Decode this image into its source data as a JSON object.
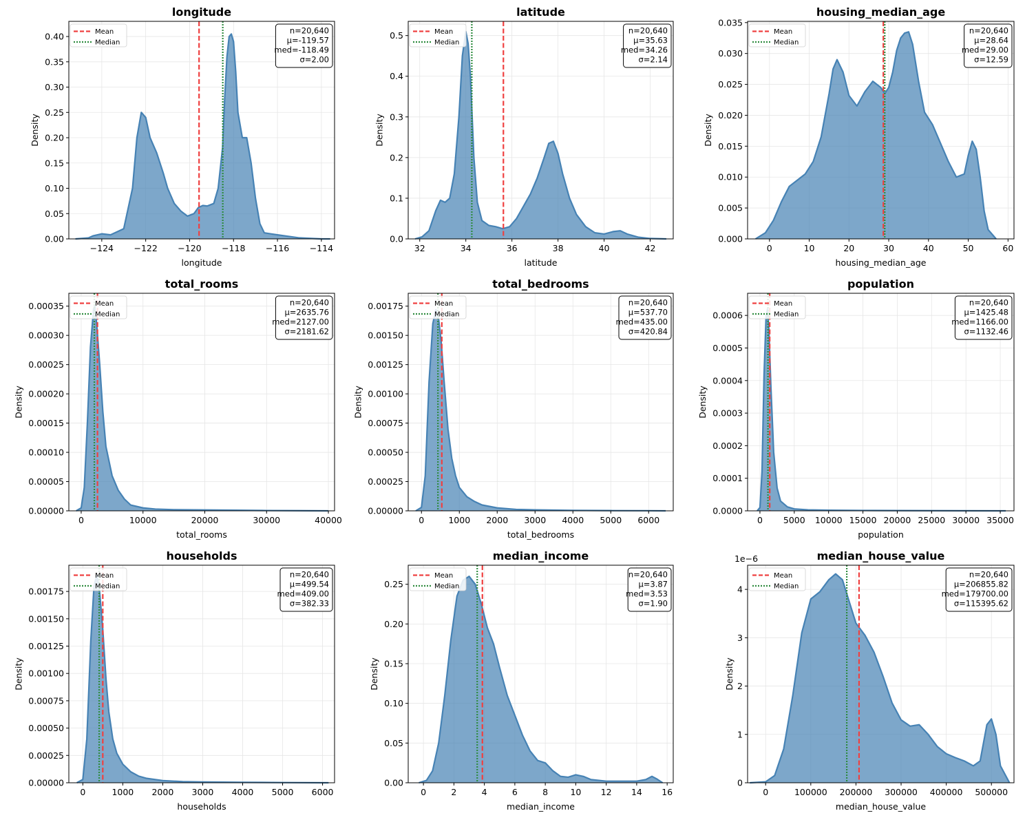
{
  "figure": {
    "legend_mean": "Mean",
    "legend_median": "Median",
    "ylabel": "Density"
  },
  "colors": {
    "fill": "#4682b4",
    "mean": "#ef4040",
    "median": "#2e8b3e",
    "grid": "#e6e6e6"
  },
  "chart_data": [
    {
      "type": "area",
      "title": "longitude",
      "xlabel": "longitude",
      "ylabel": "Density",
      "xlim": [
        -125.5,
        -113.4
      ],
      "ylim": [
        0,
        0.43
      ],
      "xticks": [
        -124,
        -122,
        -120,
        -118,
        -116,
        -114
      ],
      "xtick_labels": [
        "−124",
        "−122",
        "−120",
        "−118",
        "−116",
        "−114"
      ],
      "yticks": [
        0,
        0.05,
        0.1,
        0.15,
        0.2,
        0.25,
        0.3,
        0.35,
        0.4
      ],
      "ytick_labels": [
        "0.00",
        "0.05",
        "0.10",
        "0.15",
        "0.20",
        "0.25",
        "0.30",
        "0.35",
        "0.40"
      ],
      "offset_label": "",
      "mean": -119.57,
      "median": -118.49,
      "grid": true,
      "legend": "top-left",
      "stats": [
        "n=20,640",
        "μ=-119.57",
        "med=-118.49",
        "σ=2.00"
      ],
      "x": [
        -125.2,
        -124.6,
        -124.4,
        -124.0,
        -123.6,
        -123.0,
        -122.6,
        -122.4,
        -122.2,
        -122.0,
        -121.8,
        -121.5,
        -121.2,
        -121.0,
        -120.7,
        -120.4,
        -120.1,
        -119.8,
        -119.6,
        -119.4,
        -119.2,
        -118.9,
        -118.7,
        -118.5,
        -118.4,
        -118.3,
        -118.2,
        -118.1,
        -118.0,
        -117.9,
        -117.8,
        -117.6,
        -117.4,
        -117.2,
        -117.0,
        -116.8,
        -116.6,
        -116.3,
        -116.0,
        -115.5,
        -115.0,
        -114.5,
        -114.0,
        -113.6
      ],
      "y": [
        0.0,
        0.002,
        0.006,
        0.01,
        0.008,
        0.02,
        0.1,
        0.2,
        0.25,
        0.24,
        0.2,
        0.17,
        0.13,
        0.1,
        0.07,
        0.055,
        0.045,
        0.05,
        0.062,
        0.066,
        0.065,
        0.07,
        0.1,
        0.18,
        0.28,
        0.36,
        0.4,
        0.405,
        0.39,
        0.33,
        0.25,
        0.2,
        0.2,
        0.15,
        0.08,
        0.03,
        0.012,
        0.01,
        0.008,
        0.005,
        0.002,
        0.001,
        0.0,
        0.0
      ]
    },
    {
      "type": "area",
      "title": "latitude",
      "xlabel": "latitude",
      "ylabel": "Density",
      "xlim": [
        31.5,
        43.0
      ],
      "ylim": [
        0,
        0.535
      ],
      "xticks": [
        32,
        34,
        36,
        38,
        40,
        42
      ],
      "xtick_labels": [
        "32",
        "34",
        "36",
        "38",
        "40",
        "42"
      ],
      "yticks": [
        0,
        0.1,
        0.2,
        0.3,
        0.4,
        0.5
      ],
      "ytick_labels": [
        "0.0",
        "0.1",
        "0.2",
        "0.3",
        "0.4",
        "0.5"
      ],
      "offset_label": "",
      "mean": 35.63,
      "median": 34.26,
      "grid": true,
      "legend": "top-left",
      "stats": [
        "n=20,640",
        "μ=35.63",
        "med=34.26",
        "σ=2.14"
      ],
      "x": [
        31.8,
        32.1,
        32.4,
        32.7,
        32.9,
        33.1,
        33.3,
        33.5,
        33.7,
        33.85,
        34.0,
        34.1,
        34.2,
        34.35,
        34.5,
        34.7,
        35.0,
        35.3,
        35.6,
        35.9,
        36.2,
        36.5,
        36.8,
        37.1,
        37.4,
        37.6,
        37.8,
        38.0,
        38.2,
        38.5,
        38.8,
        39.2,
        39.6,
        40.0,
        40.4,
        40.7,
        41.0,
        41.5,
        42.0,
        42.7
      ],
      "y": [
        0.0,
        0.005,
        0.02,
        0.07,
        0.095,
        0.09,
        0.1,
        0.16,
        0.3,
        0.45,
        0.51,
        0.48,
        0.4,
        0.2,
        0.09,
        0.045,
        0.033,
        0.03,
        0.025,
        0.03,
        0.05,
        0.08,
        0.11,
        0.15,
        0.2,
        0.235,
        0.24,
        0.21,
        0.16,
        0.1,
        0.06,
        0.03,
        0.015,
        0.012,
        0.018,
        0.02,
        0.012,
        0.004,
        0.001,
        0.0
      ]
    },
    {
      "type": "area",
      "title": "housing_median_age",
      "xlabel": "housing_median_age",
      "ylabel": "Density",
      "xlim": [
        -5.5,
        61.5
      ],
      "ylim": [
        0,
        0.0352
      ],
      "xticks": [
        0,
        10,
        20,
        30,
        40,
        50,
        60
      ],
      "xtick_labels": [
        "0",
        "10",
        "20",
        "30",
        "40",
        "50",
        "60"
      ],
      "yticks": [
        0,
        0.005,
        0.01,
        0.015,
        0.02,
        0.025,
        0.03,
        0.035
      ],
      "ytick_labels": [
        "0.000",
        "0.005",
        "0.010",
        "0.015",
        "0.020",
        "0.025",
        "0.030",
        "0.035"
      ],
      "offset_label": "",
      "mean": 28.64,
      "median": 29.0,
      "grid": true,
      "legend": "top-left",
      "stats": [
        "n=20,640",
        "μ=28.64",
        "med=29.00",
        "σ=12.59"
      ],
      "x": [
        -3.5,
        -1.0,
        1.0,
        3.0,
        5.0,
        7.0,
        9.0,
        11.0,
        13.0,
        15.0,
        16.0,
        17.0,
        18.5,
        20.0,
        22.0,
        24.0,
        26.0,
        28.0,
        29.0,
        30.0,
        31.0,
        32.0,
        33.0,
        34.0,
        35.0,
        36.0,
        37.5,
        39.0,
        41.0,
        43.0,
        45.0,
        47.0,
        49.0,
        50.0,
        51.0,
        52.0,
        53.0,
        54.0,
        55.0,
        57.0
      ],
      "y": [
        0.0,
        0.001,
        0.003,
        0.006,
        0.0085,
        0.0095,
        0.0105,
        0.0125,
        0.0165,
        0.0235,
        0.0275,
        0.029,
        0.027,
        0.0232,
        0.0215,
        0.0238,
        0.0255,
        0.0245,
        0.0235,
        0.0245,
        0.027,
        0.0305,
        0.0325,
        0.0333,
        0.0335,
        0.0315,
        0.0255,
        0.0205,
        0.0185,
        0.0155,
        0.0125,
        0.01,
        0.0105,
        0.0135,
        0.0158,
        0.0145,
        0.01,
        0.0045,
        0.0015,
        0.0
      ]
    },
    {
      "type": "area",
      "title": "total_rooms",
      "xlabel": "total_rooms",
      "ylabel": "Density",
      "xlim": [
        -2000,
        41000
      ],
      "ylim": [
        0,
        0.000372
      ],
      "xticks": [
        0,
        10000,
        20000,
        30000,
        40000
      ],
      "xtick_labels": [
        "0",
        "10000",
        "20000",
        "30000",
        "40000"
      ],
      "yticks": [
        0,
        5e-05,
        0.0001,
        0.00015,
        0.0002,
        0.00025,
        0.0003,
        0.00035
      ],
      "ytick_labels": [
        "0.00000",
        "0.00005",
        "0.00010",
        "0.00015",
        "0.00020",
        "0.00025",
        "0.00030",
        "0.00035"
      ],
      "offset_label": "",
      "mean": 2635.76,
      "median": 2127.0,
      "grid": true,
      "legend": "top-left",
      "stats": [
        "n=20,640",
        "μ=2635.76",
        "med=2127.00",
        "σ=2181.62"
      ],
      "x": [
        -800,
        0,
        500,
        1000,
        1500,
        2000,
        2200,
        2500,
        3000,
        3500,
        4000,
        5000,
        6000,
        7000,
        8000,
        10000,
        12000,
        15000,
        20000,
        25000,
        30000,
        35000,
        40000
      ],
      "y": [
        0.0,
        5e-06,
        4e-05,
        0.00015,
        0.00028,
        0.000345,
        0.00035,
        0.00032,
        0.00025,
        0.00017,
        0.00011,
        6e-05,
        3.5e-05,
        2e-05,
        1e-05,
        5e-06,
        3e-06,
        2e-06,
        1.5e-06,
        1e-06,
        5e-07,
        3e-07,
        0.0
      ]
    },
    {
      "type": "area",
      "title": "total_bedrooms",
      "xlabel": "total_bedrooms",
      "ylabel": "Density",
      "xlim": [
        -350,
        6650
      ],
      "ylim": [
        0,
        0.00186
      ],
      "xticks": [
        0,
        1000,
        2000,
        3000,
        4000,
        5000,
        6000
      ],
      "xtick_labels": [
        "0",
        "1000",
        "2000",
        "3000",
        "4000",
        "5000",
        "6000"
      ],
      "yticks": [
        0,
        0.00025,
        0.0005,
        0.00075,
        0.001,
        0.00125,
        0.0015,
        0.00175
      ],
      "ytick_labels": [
        "0.00000",
        "0.00025",
        "0.00050",
        "0.00075",
        "0.00100",
        "0.00125",
        "0.00150",
        "0.00175"
      ],
      "offset_label": "",
      "mean": 537.7,
      "median": 435.0,
      "grid": true,
      "legend": "top-left",
      "stats": [
        "n=20,640",
        "μ=537.70",
        "med=435.00",
        "σ=420.84"
      ],
      "x": [
        -150,
        0,
        100,
        200,
        300,
        380,
        450,
        520,
        600,
        700,
        800,
        900,
        1000,
        1200,
        1400,
        1600,
        2000,
        2500,
        3000,
        3500,
        4000,
        5000,
        6000,
        6450
      ],
      "y": [
        0.0,
        3e-05,
        0.0003,
        0.0011,
        0.0016,
        0.00172,
        0.00165,
        0.00145,
        0.0011,
        0.0007,
        0.00045,
        0.0003,
        0.0002,
        0.00012,
        8e-05,
        5e-05,
        2.5e-05,
        1.2e-05,
        8e-06,
        6e-06,
        4e-06,
        2e-06,
        1e-06,
        0.0
      ]
    },
    {
      "type": "area",
      "title": "population",
      "xlabel": "population",
      "ylabel": "Density",
      "xlim": [
        -1800,
        37000
      ],
      "ylim": [
        0,
        0.000668
      ],
      "xticks": [
        0,
        5000,
        10000,
        15000,
        20000,
        25000,
        30000,
        35000
      ],
      "xtick_labels": [
        "0",
        "5000",
        "10000",
        "15000",
        "20000",
        "25000",
        "30000",
        "35000"
      ],
      "yticks": [
        0,
        0.0001,
        0.0002,
        0.0003,
        0.0004,
        0.0005,
        0.0006
      ],
      "ytick_labels": [
        "0.0000",
        "0.0001",
        "0.0002",
        "0.0003",
        "0.0004",
        "0.0005",
        "0.0006"
      ],
      "offset_label": "",
      "mean": 1425.48,
      "median": 1166.0,
      "grid": true,
      "legend": "top-left",
      "stats": [
        "n=20,640",
        "μ=1425.48",
        "med=1166.00",
        "σ=1132.46"
      ],
      "x": [
        -400,
        0,
        300,
        600,
        900,
        1100,
        1300,
        1600,
        2000,
        2500,
        3000,
        4000,
        5000,
        7000,
        10000,
        15000,
        20000,
        25000,
        30000,
        35800
      ],
      "y": [
        0.0,
        1e-05,
        0.00012,
        0.00042,
        0.0006,
        0.00062,
        0.00056,
        0.00038,
        0.00018,
        7e-05,
        3e-05,
        1.2e-05,
        6e-06,
        3e-06,
        2e-06,
        1.2e-06,
        8e-07,
        5e-07,
        3e-07,
        0.0
      ]
    },
    {
      "type": "area",
      "title": "households",
      "xlabel": "households",
      "ylabel": "Density",
      "xlim": [
        -350,
        6300
      ],
      "ylim": [
        0,
        0.00199
      ],
      "xticks": [
        0,
        1000,
        2000,
        3000,
        4000,
        5000,
        6000
      ],
      "xtick_labels": [
        "0",
        "1000",
        "2000",
        "3000",
        "4000",
        "5000",
        "6000"
      ],
      "yticks": [
        0,
        0.00025,
        0.0005,
        0.00075,
        0.001,
        0.00125,
        0.0015,
        0.00175
      ],
      "ytick_labels": [
        "0.00000",
        "0.00025",
        "0.00050",
        "0.00075",
        "0.00100",
        "0.00125",
        "0.00150",
        "0.00175"
      ],
      "offset_label": "",
      "mean": 499.54,
      "median": 409.0,
      "grid": true,
      "legend": "top-left",
      "stats": [
        "n=20,640",
        "μ=499.54",
        "med=409.00",
        "σ=382.33"
      ],
      "x": [
        -150,
        0,
        100,
        200,
        280,
        350,
        420,
        500,
        580,
        650,
        750,
        850,
        1000,
        1200,
        1400,
        1600,
        2000,
        2500,
        3000,
        4000,
        5000,
        6150
      ],
      "y": [
        0.0,
        3e-05,
        0.0004,
        0.0013,
        0.0018,
        0.0019,
        0.00175,
        0.0014,
        0.00095,
        0.00065,
        0.0004,
        0.00027,
        0.00017,
        0.0001,
        6e-05,
        4e-05,
        2e-05,
        1e-05,
        7e-06,
        4e-06,
        2e-06,
        0.0
      ]
    },
    {
      "type": "area",
      "title": "median_income",
      "xlabel": "median_income",
      "ylabel": "Density",
      "xlim": [
        -1.0,
        16.4
      ],
      "ylim": [
        0,
        0.274
      ],
      "xticks": [
        0,
        2,
        4,
        6,
        8,
        10,
        12,
        14,
        16
      ],
      "xtick_labels": [
        "0",
        "2",
        "4",
        "6",
        "8",
        "10",
        "12",
        "14",
        "16"
      ],
      "yticks": [
        0,
        0.05,
        0.1,
        0.15,
        0.2,
        0.25
      ],
      "ytick_labels": [
        "0.00",
        "0.05",
        "0.10",
        "0.15",
        "0.20",
        "0.25"
      ],
      "offset_label": "",
      "mean": 3.87,
      "median": 3.53,
      "grid": true,
      "legend": "top-left",
      "stats": [
        "n=20,640",
        "μ=3.87",
        "med=3.53",
        "σ=1.90"
      ],
      "x": [
        -0.3,
        0.2,
        0.6,
        1.0,
        1.4,
        1.8,
        2.2,
        2.6,
        3.0,
        3.4,
        3.8,
        4.2,
        4.6,
        5.0,
        5.5,
        6.0,
        6.5,
        7.0,
        7.5,
        8.0,
        8.5,
        9.0,
        9.5,
        10.0,
        10.5,
        11.0,
        12.0,
        13.0,
        14.0,
        14.6,
        15.0,
        15.3,
        15.7
      ],
      "y": [
        0.0,
        0.003,
        0.015,
        0.05,
        0.11,
        0.18,
        0.235,
        0.255,
        0.26,
        0.25,
        0.225,
        0.195,
        0.175,
        0.145,
        0.11,
        0.085,
        0.06,
        0.04,
        0.028,
        0.025,
        0.015,
        0.008,
        0.007,
        0.01,
        0.008,
        0.004,
        0.002,
        0.002,
        0.002,
        0.004,
        0.008,
        0.005,
        0.0
      ]
    },
    {
      "type": "area",
      "title": "median_house_value",
      "xlabel": "median_house_value",
      "ylabel": "Density",
      "xlim": [
        -40000,
        550000
      ],
      "ylim": [
        0,
        4.5e-06
      ],
      "xticks": [
        0,
        100000,
        200000,
        300000,
        400000,
        500000
      ],
      "xtick_labels": [
        "0",
        "100000",
        "200000",
        "300000",
        "400000",
        "500000"
      ],
      "yticks": [
        0,
        1e-06,
        2e-06,
        3e-06,
        4e-06
      ],
      "ytick_labels": [
        "0",
        "1",
        "2",
        "3",
        "4"
      ],
      "offset_label": "1e−6",
      "mean": 206855.82,
      "median": 179700.0,
      "grid": true,
      "legend": "top-left",
      "stats": [
        "n=20,640",
        "μ=206855.82",
        "med=179700.00",
        "σ=115395.62"
      ],
      "x": [
        -35000,
        0,
        20000,
        40000,
        60000,
        80000,
        100000,
        120000,
        140000,
        155000,
        170000,
        185000,
        200000,
        220000,
        240000,
        260000,
        280000,
        300000,
        320000,
        340000,
        360000,
        380000,
        400000,
        420000,
        440000,
        460000,
        475000,
        490000,
        500000,
        510000,
        520000,
        540000
      ],
      "y": [
        0.0,
        2e-08,
        1.5e-07,
        7e-07,
        1.8e-06,
        3.1e-06,
        3.8e-06,
        3.95e-06,
        4.2e-06,
        4.32e-06,
        4.2e-06,
        3.75e-06,
        3.3e-06,
        3.05e-06,
        2.7e-06,
        2.2e-06,
        1.65e-06,
        1.3e-06,
        1.17e-06,
        1.2e-06,
        1e-06,
        7.5e-07,
        6e-07,
        5.2e-07,
        4.5e-07,
        3.5e-07,
        4.5e-07,
        1.2e-06,
        1.32e-06,
        1e-06,
        3.5e-07,
        0.0
      ]
    }
  ]
}
